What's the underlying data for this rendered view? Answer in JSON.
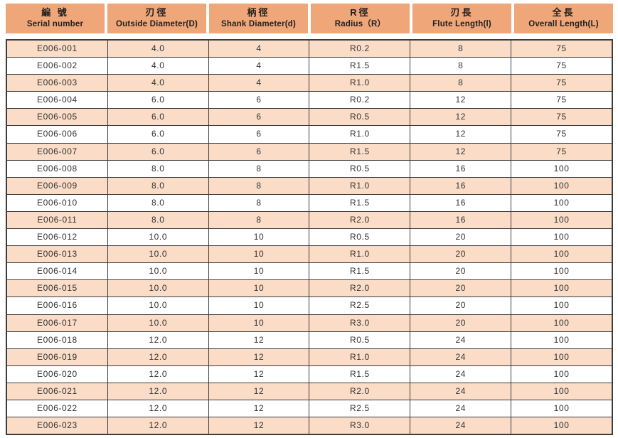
{
  "colors": {
    "header_bg": "#efa679",
    "row_alt_bg": "#fadcc7",
    "row_bg": "#ffffff",
    "border": "#3c3c3c",
    "cell_text": "#323232",
    "header_text": "#1f1f1f"
  },
  "table": {
    "columns": [
      {
        "zh": "編  號",
        "en": "Serial number"
      },
      {
        "zh": "刃徑",
        "en": "Outside Diameter(D)"
      },
      {
        "zh": "柄徑",
        "en": "Shank Diameter(d)"
      },
      {
        "zh": "R徑",
        "en": "Radius（R）"
      },
      {
        "zh": "刃長",
        "en": "Flute  Length(l)"
      },
      {
        "zh": "全長",
        "en": "Overall Length(L)"
      }
    ],
    "rows": [
      [
        "E006-001",
        "4.0",
        "4",
        "R0.2",
        "8",
        "75"
      ],
      [
        "E006-002",
        "4.0",
        "4",
        "R1.5",
        "8",
        "75"
      ],
      [
        "E006-003",
        "4.0",
        "4",
        "R1.0",
        "8",
        "75"
      ],
      [
        "E006-004",
        "6.0",
        "6",
        "R0.2",
        "12",
        "75"
      ],
      [
        "E006-005",
        "6.0",
        "6",
        "R0.5",
        "12",
        "75"
      ],
      [
        "E006-006",
        "6.0",
        "6",
        "R1.0",
        "12",
        "75"
      ],
      [
        "E006-007",
        "6.0",
        "6",
        "R1.5",
        "12",
        "75"
      ],
      [
        "E006-008",
        "8.0",
        "8",
        "R0.5",
        "16",
        "100"
      ],
      [
        "E006-009",
        "8.0",
        "8",
        "R1.0",
        "16",
        "100"
      ],
      [
        "E006-010",
        "8.0",
        "8",
        "R1.5",
        "16",
        "100"
      ],
      [
        "E006-011",
        "8.0",
        "8",
        "R2.0",
        "16",
        "100"
      ],
      [
        "E006-012",
        "10.0",
        "10",
        "R0.5",
        "20",
        "100"
      ],
      [
        "E006-013",
        "10.0",
        "10",
        "R1.0",
        "20",
        "100"
      ],
      [
        "E006-014",
        "10.0",
        "10",
        "R1.5",
        "20",
        "100"
      ],
      [
        "E006-015",
        "10.0",
        "10",
        "R2.0",
        "20",
        "100"
      ],
      [
        "E006-016",
        "10.0",
        "10",
        "R2.5",
        "20",
        "100"
      ],
      [
        "E006-017",
        "10.0",
        "10",
        "R3.0",
        "20",
        "100"
      ],
      [
        "E006-018",
        "12.0",
        "12",
        "R0.5",
        "24",
        "100"
      ],
      [
        "E006-019",
        "12.0",
        "12",
        "R1.0",
        "24",
        "100"
      ],
      [
        "E006-020",
        "12.0",
        "12",
        "R1.5",
        "24",
        "100"
      ],
      [
        "E006-021",
        "12.0",
        "12",
        "R2.0",
        "24",
        "100"
      ],
      [
        "E006-022",
        "12.0",
        "12",
        "R2.5",
        "24",
        "100"
      ],
      [
        "E006-023",
        "12.0",
        "12",
        "R3.0",
        "24",
        "100"
      ]
    ]
  }
}
